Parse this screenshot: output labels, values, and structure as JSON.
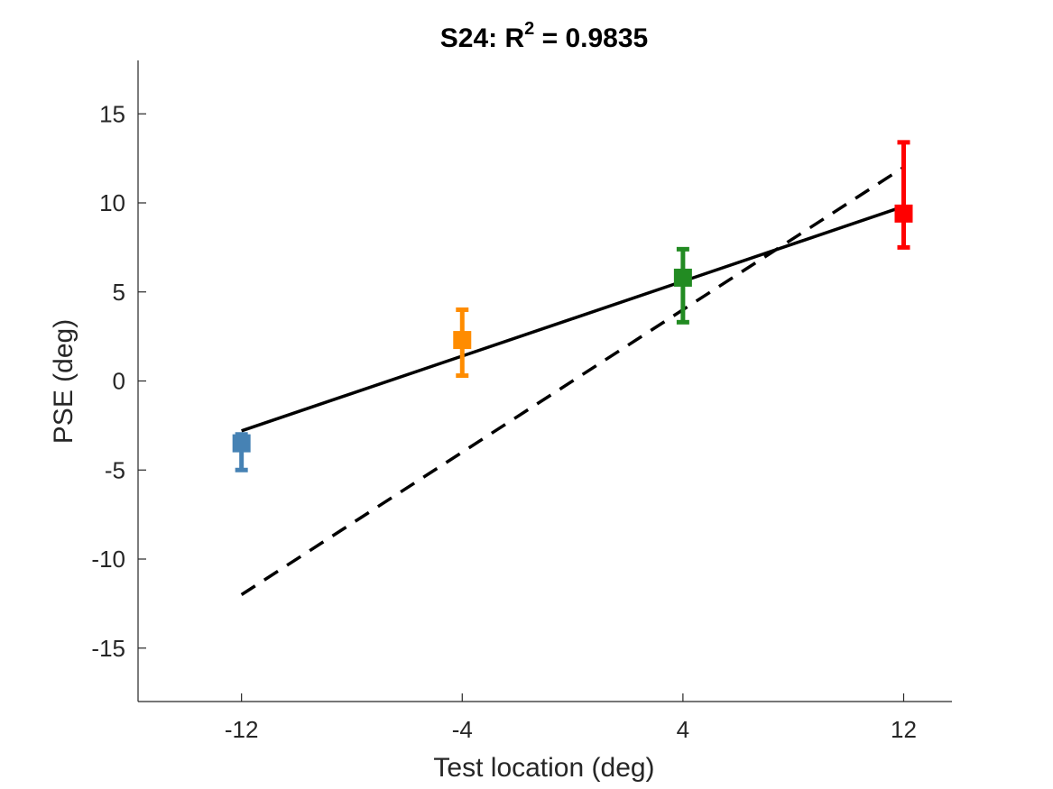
{
  "chart_data": {
    "type": "scatter",
    "title": {
      "prefix": "S24: R",
      "superscript": "2",
      "suffix": " = 0.9835"
    },
    "xlabel": "Test location (deg)",
    "ylabel": "PSE (deg)",
    "xlim": [
      -15.75,
      13.75
    ],
    "ylim": [
      -18,
      18
    ],
    "xticks": [
      -12,
      -4,
      4,
      12
    ],
    "yticks": [
      -15,
      -10,
      -5,
      0,
      5,
      10,
      15
    ],
    "xtick_labels": [
      "-12",
      "-4",
      "4",
      "12"
    ],
    "ytick_labels": [
      "-15",
      "-10",
      "-5",
      "0",
      "5",
      "10",
      "15"
    ],
    "grid": false,
    "points": [
      {
        "x": -12,
        "y": -3.5,
        "err_low": -5.0,
        "err_high": -3.0,
        "color": "#4682B4"
      },
      {
        "x": -4,
        "y": 2.3,
        "err_low": 0.3,
        "err_high": 4.0,
        "color": "#FF8C00"
      },
      {
        "x": 4,
        "y": 5.8,
        "err_low": 3.3,
        "err_high": 7.4,
        "color": "#228B22"
      },
      {
        "x": 12,
        "y": 9.4,
        "err_low": 7.5,
        "err_high": 13.4,
        "color": "#FF0000"
      }
    ],
    "fit_line": {
      "x": [
        -12,
        12
      ],
      "y": [
        -2.8,
        9.8
      ],
      "style": "solid",
      "color": "#000000"
    },
    "identity_line": {
      "x": [
        -12,
        12
      ],
      "y": [
        -12,
        12
      ],
      "style": "dashed",
      "color": "#000000"
    }
  }
}
